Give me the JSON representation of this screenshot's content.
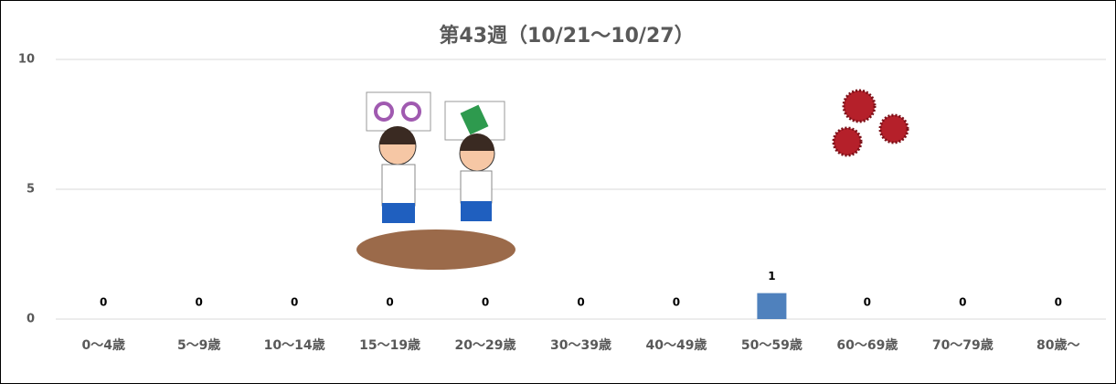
{
  "chart_data": {
    "type": "bar",
    "title": "第43週（10/21～10/27）",
    "categories": [
      "0～4歳",
      "5～9歳",
      "10～14歳",
      "15～19歳",
      "20～29歳",
      "30～39歳",
      "40～49歳",
      "50～59歳",
      "60～69歳",
      "70～79歳",
      "80歳～"
    ],
    "values": [
      0,
      0,
      0,
      0,
      0,
      0,
      0,
      1,
      0,
      0,
      0
    ],
    "color": "#4f81bd",
    "ylim": [
      0,
      10
    ],
    "yticks": [
      0,
      5,
      10
    ],
    "grid": true
  }
}
